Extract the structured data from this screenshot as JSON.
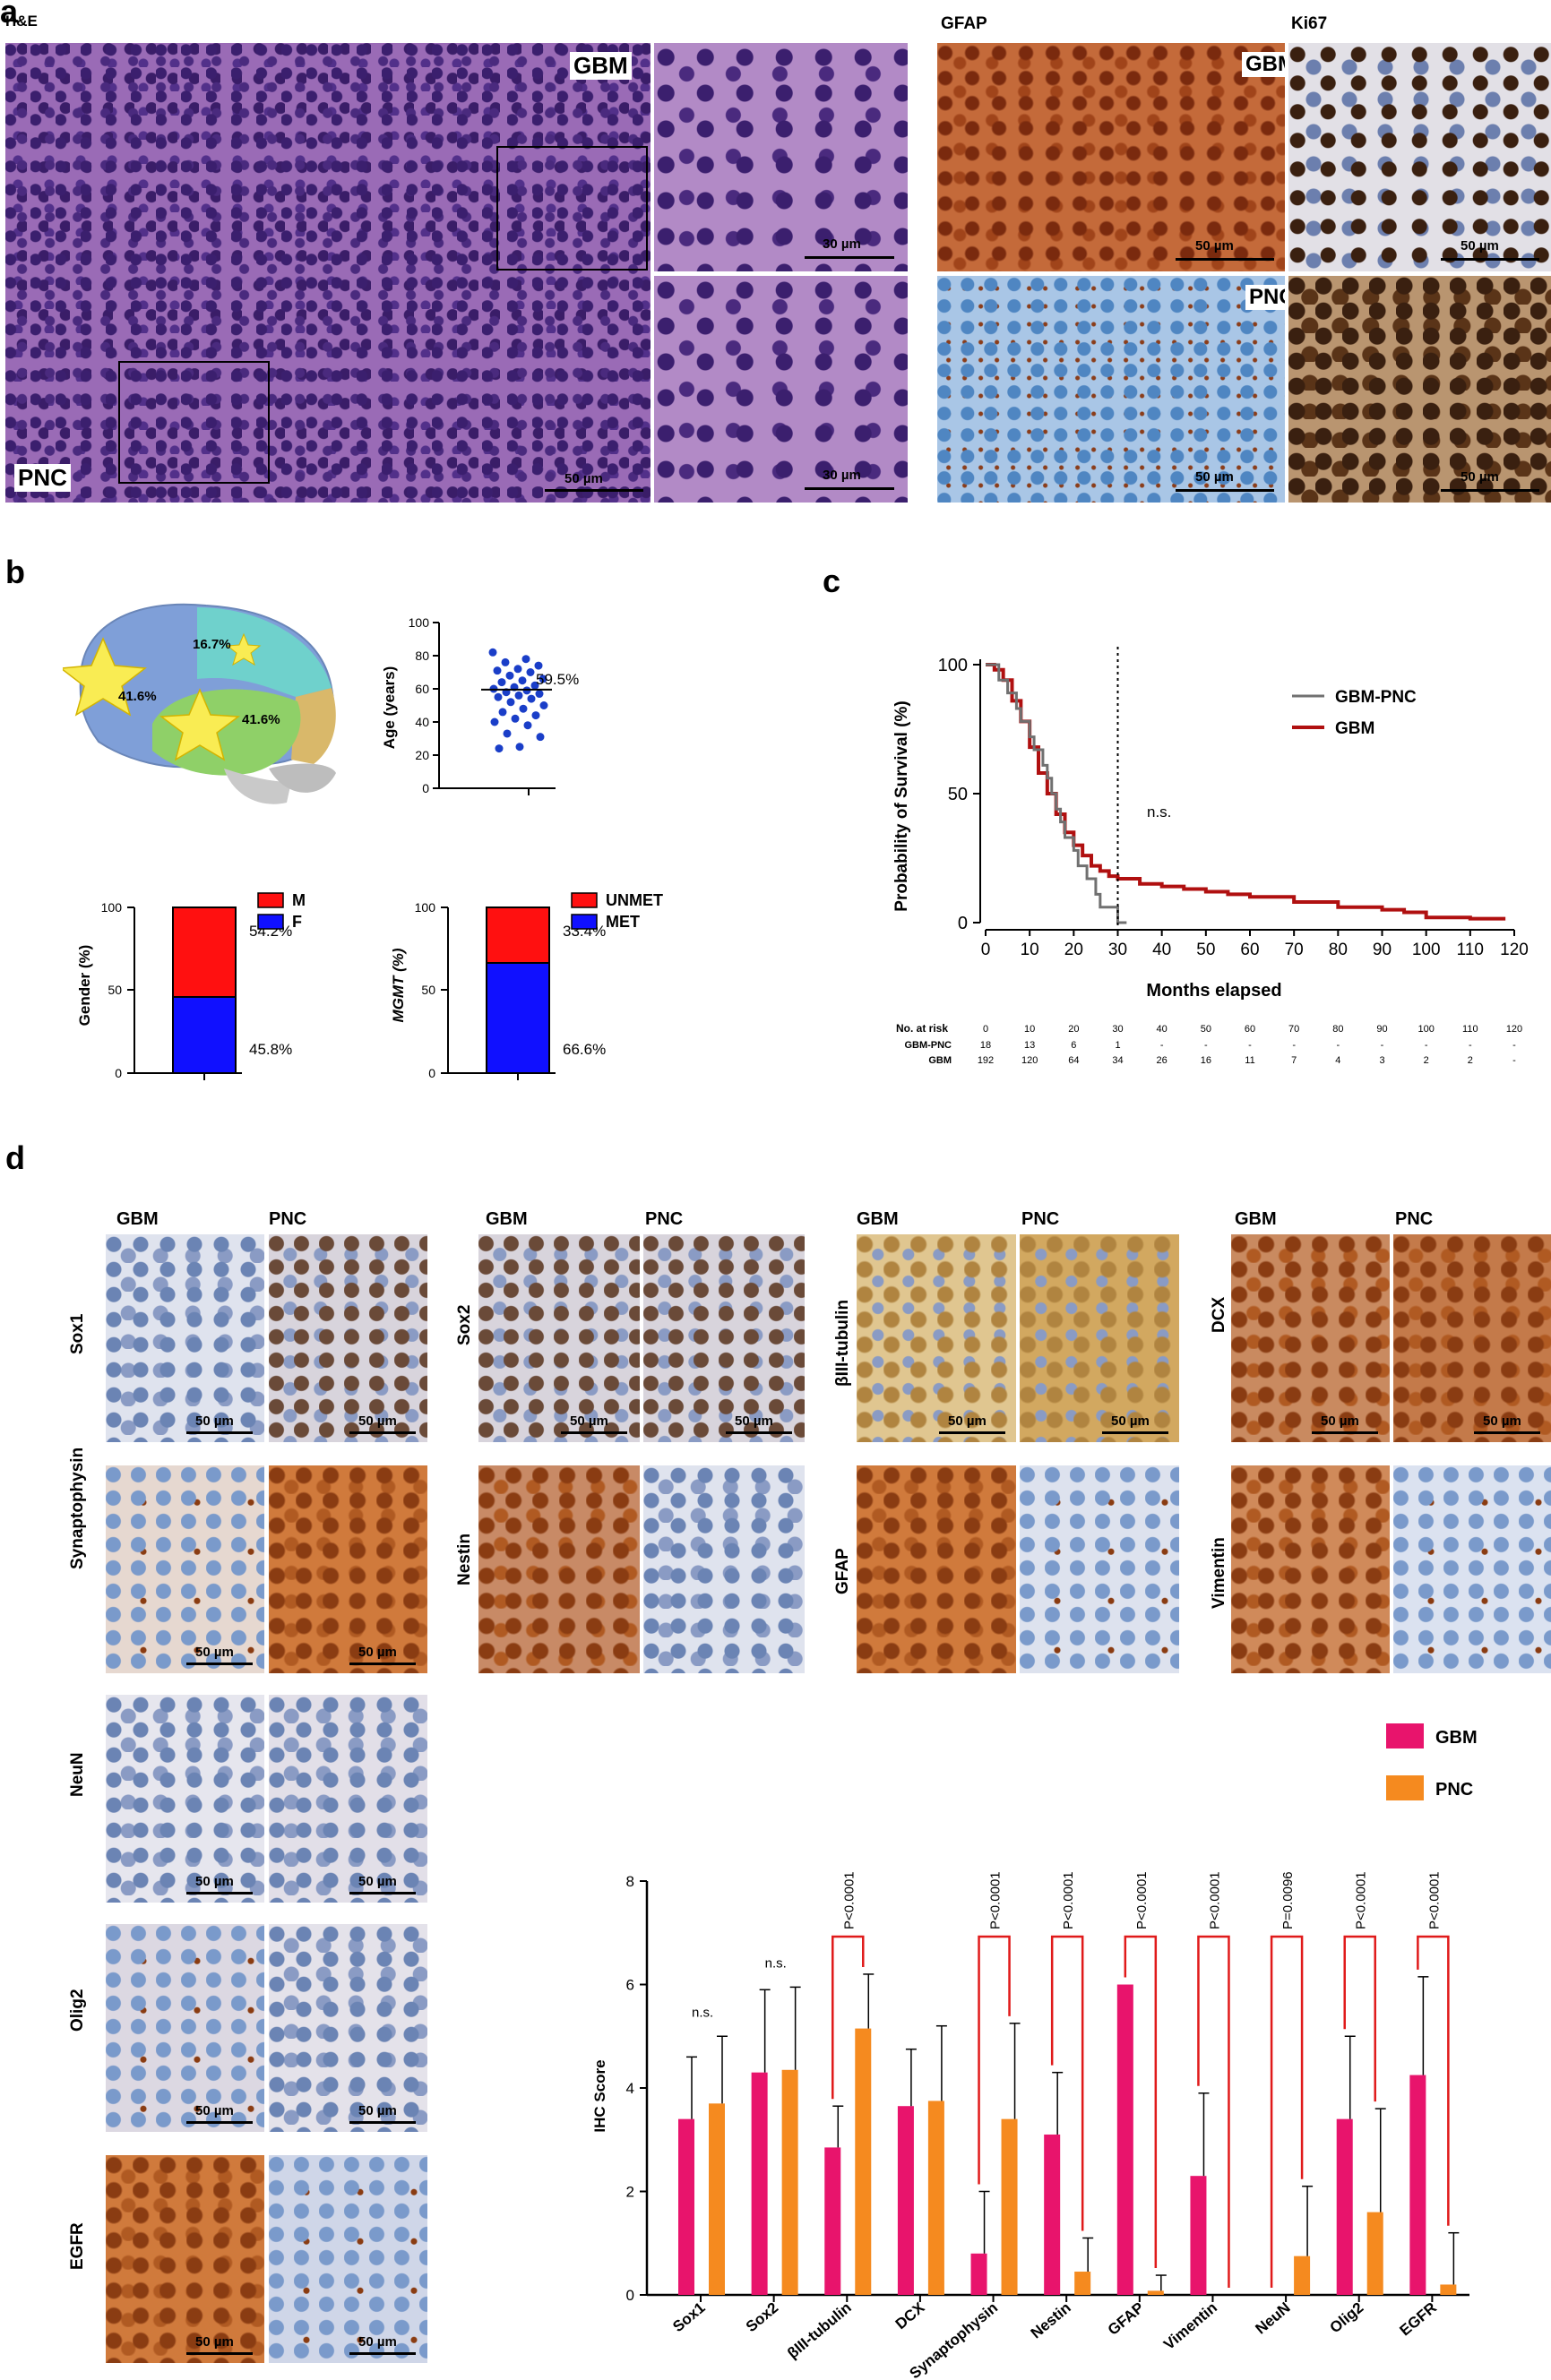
{
  "panel_a": {
    "letter": "a",
    "he_label": "H&E",
    "gfap_label": "GFAP",
    "ki67_label": "Ki67",
    "tag_gbm": "GBM",
    "tag_pnc": "PNC",
    "scale_50": "50 µm",
    "scale_30": "30 µm"
  },
  "panel_b": {
    "letter": "b",
    "brain_pct_frontal": "41.6%",
    "brain_pct_parietal": "16.7%",
    "brain_pct_temporal": "41.6%",
    "age_chart": {
      "ylabel": "Age (years)",
      "yticks": [
        "0",
        "20",
        "40",
        "60",
        "80",
        "100"
      ],
      "median_label": "59.5%"
    },
    "gender_chart": {
      "ylabel": "Gender (%)",
      "yticks": [
        "0",
        "50",
        "100"
      ],
      "legend": [
        "M",
        "F"
      ],
      "top_pct": "54.2%",
      "bottom_pct": "45.8%"
    },
    "mgmt_chart": {
      "ylabel": "MGMT (%)",
      "yticks": [
        "0",
        "50",
        "100"
      ],
      "legend": [
        "UNMET",
        "MET"
      ],
      "top_pct": "33.4%",
      "bottom_pct": "66.6%"
    }
  },
  "panel_c": {
    "letter": "c",
    "ylabel": "Probability of Survival (%)",
    "xlabel": "Months elapsed",
    "yticks": [
      "0",
      "50",
      "100"
    ],
    "xticks": [
      "0",
      "10",
      "20",
      "30",
      "40",
      "50",
      "60",
      "70",
      "80",
      "90",
      "100",
      "110",
      "120"
    ],
    "legend": [
      "GBM-PNC",
      "GBM"
    ],
    "ns_label": "n.s.",
    "risk_title": "No. at risk",
    "risk_rows": [
      {
        "name": "GBM-PNC",
        "values": [
          "18",
          "13",
          "6",
          "1",
          "-",
          "-",
          "-",
          "-",
          "-",
          "-",
          "-",
          "-",
          "-"
        ]
      },
      {
        "name": "GBM",
        "values": [
          "192",
          "120",
          "64",
          "34",
          "26",
          "16",
          "11",
          "7",
          "4",
          "3",
          "2",
          "2",
          "-"
        ]
      }
    ]
  },
  "panel_d": {
    "letter": "d",
    "col_gbm": "GBM",
    "col_pnc": "PNC",
    "markers": [
      "Sox1",
      "Sox2",
      "βIII-tubulin",
      "DCX",
      "Synaptophysin",
      "Nestin",
      "GFAP",
      "Vimentin",
      "NeuN",
      "Olig2",
      "EGFR"
    ],
    "scale_50": "50 µm"
  },
  "chart_data": {
    "type": "bar",
    "ylabel": "IHC Score",
    "ylim": [
      0,
      8
    ],
    "yticks": [
      "0",
      "2",
      "4",
      "6",
      "8"
    ],
    "categories": [
      "Sox1",
      "Sox2",
      "βIII-tubulin",
      "DCX",
      "Synaptophysin",
      "Nestin",
      "GFAP",
      "Vimentin",
      "NeuN",
      "Olig2",
      "EGFR"
    ],
    "series": [
      {
        "name": "GBM",
        "color": "#e8146c",
        "values": [
          3.4,
          4.3,
          2.85,
          3.65,
          0.8,
          3.1,
          6.0,
          2.3,
          0.0,
          3.4,
          4.25
        ],
        "errors": [
          1.2,
          1.6,
          0.8,
          1.1,
          1.2,
          1.2,
          0.0,
          1.6,
          0.0,
          1.6,
          1.9
        ]
      },
      {
        "name": "PNC",
        "color": "#f58a1f",
        "values": [
          3.7,
          4.35,
          5.15,
          3.75,
          3.4,
          0.45,
          0.08,
          0.0,
          0.75,
          1.6,
          0.2
        ],
        "errors": [
          1.3,
          1.6,
          1.05,
          1.45,
          1.85,
          0.65,
          0.3,
          0.0,
          1.35,
          2.0,
          1.0
        ]
      }
    ],
    "annotations": [
      "n.s.",
      "n.s.",
      "P<0.0001",
      "",
      "P<0.0001",
      "P<0.0001",
      "P<0.0001",
      "P<0.0001",
      "P=0.0096",
      "P<0.0001",
      "P<0.0001"
    ],
    "legend_placement": "top-right"
  }
}
